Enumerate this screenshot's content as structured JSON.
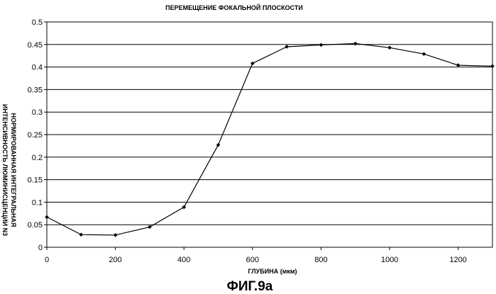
{
  "chart_data": {
    "type": "line",
    "title": "ПЕРЕМЕЩЕНИЕ ФОКАЛЬНОЙ ПЛОСКОСТИ",
    "xlabel": "ГЛУБИНА (мкм)",
    "ylabel_lines": [
      "НОРМИРОВАННАЯ ИНТЕГРАЛЬНАЯ",
      "ИНТЕНСИВНОСТЬ ЛЮМИНИСЦЕНЦИИ N3"
    ],
    "figure_caption": "ФИГ.9a",
    "xlim": [
      0,
      1300
    ],
    "ylim": [
      0,
      0.5
    ],
    "x_ticks": [
      0,
      200,
      400,
      600,
      800,
      1000,
      1200
    ],
    "x_tick_labels": [
      "0",
      "200",
      "400",
      "600",
      "800",
      "1000",
      "1200"
    ],
    "y_ticks": [
      0,
      0.05,
      0.1,
      0.15,
      0.2,
      0.25,
      0.3,
      0.35,
      0.4,
      0.45,
      0.5
    ],
    "y_tick_labels": [
      "0",
      "0.05",
      "0.1",
      "0.15",
      "0.2",
      "0.25",
      "0.3",
      "0.35",
      "0.4",
      "0.45",
      "0.5"
    ],
    "grid": "horizontal",
    "legend": "none",
    "series": [
      {
        "x": [
          0,
          100,
          200,
          300,
          400,
          500,
          600,
          700,
          800,
          900,
          1000,
          1100,
          1200,
          1300
        ],
        "y": [
          0.067,
          0.028,
          0.027,
          0.045,
          0.089,
          0.227,
          0.408,
          0.445,
          0.449,
          0.452,
          0.443,
          0.429,
          0.404,
          0.402
        ],
        "color": "#000000"
      }
    ]
  }
}
